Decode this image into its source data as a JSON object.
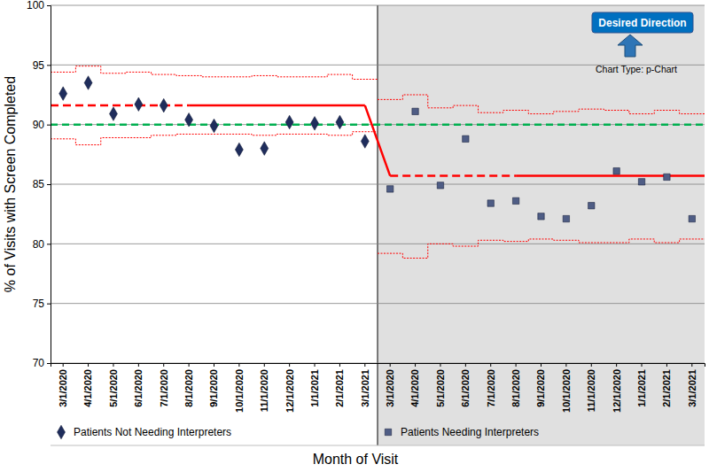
{
  "chart_data": {
    "type": "scatter",
    "x_label": "Month of Visit",
    "y_label": "% of Visits with Screen Completed",
    "annotations": [
      "Desired Direction",
      "Chart Type: p-Chart"
    ],
    "categories": [
      "3/1/2020",
      "4/1/2020",
      "5/1/2020",
      "6/1/2020",
      "7/1/2020",
      "8/1/2020",
      "9/1/2020",
      "10/1/2020",
      "11/1/2020",
      "12/1/2020",
      "1/1/2021",
      "2/1/2021",
      "3/1/2021",
      "3/1/2020",
      "4/1/2020",
      "5/1/2020",
      "6/1/2020",
      "7/1/2020",
      "8/1/2020",
      "9/1/2020",
      "10/1/2020",
      "11/1/2020",
      "12/1/2020",
      "1/1/2021",
      "2/1/2021",
      "3/1/2021"
    ],
    "ylim": [
      70,
      100
    ],
    "yticks": [
      70,
      75,
      80,
      85,
      90,
      95,
      100
    ],
    "grid": true,
    "goal": 90,
    "series": [
      {
        "name": "Patients Not Needing Interpreters",
        "color": "#1f2d5c",
        "marker": "diamond",
        "values": [
          92.6,
          93.5,
          90.9,
          91.7,
          91.6,
          90.4,
          89.9,
          87.9,
          88.0,
          90.2,
          90.1,
          90.2,
          88.6,
          null,
          null,
          null,
          null,
          null,
          null,
          null,
          null,
          null,
          null,
          null,
          null,
          null
        ],
        "center_line": 91.6,
        "ucl": [
          94.4,
          94.9,
          94.3,
          94.4,
          94.2,
          94.1,
          94.0,
          94.0,
          94.1,
          94.0,
          94.0,
          94.2,
          93.8,
          null,
          null,
          null,
          null,
          null,
          null,
          null,
          null,
          null,
          null,
          null,
          null,
          null
        ],
        "lcl": [
          88.8,
          88.3,
          88.9,
          88.9,
          89.1,
          89.2,
          89.2,
          89.2,
          89.1,
          89.2,
          89.2,
          89.1,
          89.4,
          null,
          null,
          null,
          null,
          null,
          null,
          null,
          null,
          null,
          null,
          null,
          null,
          null
        ]
      },
      {
        "name": "Patients Needing Interpreters",
        "color": "#4f5d85",
        "marker": "square",
        "values": [
          null,
          null,
          null,
          null,
          null,
          null,
          null,
          null,
          null,
          null,
          null,
          null,
          null,
          84.6,
          91.1,
          84.9,
          88.8,
          83.4,
          83.6,
          82.3,
          82.1,
          83.2,
          86.1,
          85.2,
          85.6,
          82.1
        ],
        "center_line": 85.7,
        "ucl": [
          null,
          null,
          null,
          null,
          null,
          null,
          null,
          null,
          null,
          null,
          null,
          null,
          null,
          92.1,
          92.5,
          91.4,
          91.6,
          91.0,
          91.2,
          90.9,
          91.1,
          91.3,
          91.2,
          90.9,
          91.2,
          90.9
        ],
        "lcl": [
          null,
          null,
          null,
          null,
          null,
          null,
          null,
          null,
          null,
          null,
          null,
          null,
          null,
          79.2,
          78.8,
          80.0,
          79.8,
          80.3,
          80.2,
          80.4,
          80.3,
          80.1,
          80.1,
          80.4,
          80.1,
          80.4
        ]
      }
    ]
  }
}
